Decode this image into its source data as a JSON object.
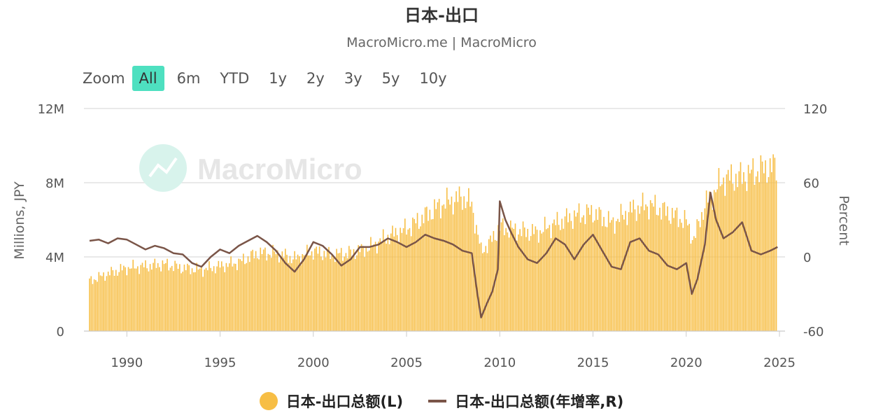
{
  "header": {
    "title": "日本-出口",
    "subtitle": "MacroMicro.me | MacroMicro"
  },
  "zoom": {
    "label": "Zoom",
    "buttons": [
      "All",
      "6m",
      "YTD",
      "1y",
      "2y",
      "3y",
      "5y",
      "10y"
    ],
    "active": "All"
  },
  "watermark": {
    "text": "MacroMicro"
  },
  "colors": {
    "bars": "#f7be45",
    "line": "#7a5548",
    "grid": "#e2e2e2",
    "active": "#4ee0c0"
  },
  "chart_data": {
    "type": "bar",
    "title": "日本-出口",
    "subtitle": "MacroMicro.me | MacroMicro",
    "x_range": [
      1988,
      2024.9
    ],
    "x_ticks": [
      "1990",
      "1995",
      "2000",
      "2005",
      "2010",
      "2015",
      "2020",
      "2025"
    ],
    "y_left": {
      "label": "Millions, JPY",
      "range": [
        0,
        12000000
      ],
      "ticks": [
        "0",
        "4M",
        "8M",
        "12M"
      ]
    },
    "y_right": {
      "label": "Percent",
      "range": [
        -60,
        120
      ],
      "ticks": [
        "-60",
        "0",
        "60",
        "120"
      ]
    },
    "grid": true,
    "legend_position": "bottom",
    "series": [
      {
        "name": "日本-出口总额(L)",
        "type": "bar",
        "axis": "left",
        "x": [
          1988,
          1989,
          1990,
          1991,
          1992,
          1993,
          1994,
          1995,
          1996,
          1997,
          1998,
          1999,
          2000,
          2001,
          2002,
          2003,
          2004,
          2005,
          2006,
          2007,
          2008,
          2008.5,
          2009,
          2009.5,
          2010,
          2011,
          2012,
          2013,
          2014,
          2015,
          2016,
          2017,
          2018,
          2019,
          2020,
          2020.4,
          2021,
          2022,
          2023,
          2024,
          2024.9
        ],
        "values": [
          2700000,
          3100000,
          3400000,
          3500000,
          3600000,
          3400000,
          3300000,
          3500000,
          3700000,
          4200000,
          4200000,
          3900000,
          4300000,
          4100000,
          4200000,
          4500000,
          5100000,
          5500000,
          6200000,
          6900000,
          7200000,
          6800000,
          4300000,
          4800000,
          5600000,
          5400000,
          5300000,
          5800000,
          6200000,
          6400000,
          5800000,
          6500000,
          6800000,
          6400000,
          5900000,
          4900000,
          6800000,
          8200000,
          8300000,
          8700000,
          8900000
        ]
      },
      {
        "name": "日本-出口总额(年增率,R)",
        "type": "line",
        "axis": "right",
        "x": [
          1988,
          1988.5,
          1989,
          1989.5,
          1990,
          1990.5,
          1991,
          1991.5,
          1992,
          1992.5,
          1993,
          1993.5,
          1994,
          1994.5,
          1995,
          1995.5,
          1996,
          1996.5,
          1997,
          1997.5,
          1998,
          1998.5,
          1999,
          1999.5,
          2000,
          2000.5,
          2001,
          2001.5,
          2002,
          2002.5,
          2003,
          2003.5,
          2004,
          2004.5,
          2005,
          2005.5,
          2006,
          2006.5,
          2007,
          2007.5,
          2008,
          2008.5,
          2008.8,
          2009,
          2009.3,
          2009.6,
          2009.9,
          2010,
          2010.3,
          2010.6,
          2011,
          2011.5,
          2012,
          2012.5,
          2013,
          2013.5,
          2014,
          2014.5,
          2015,
          2015.5,
          2016,
          2016.5,
          2017,
          2017.5,
          2018,
          2018.5,
          2019,
          2019.5,
          2020,
          2020.3,
          2020.6,
          2021,
          2021.3,
          2021.6,
          2022,
          2022.5,
          2023,
          2023.5,
          2024,
          2024.5,
          2024.9
        ],
        "values": [
          13,
          14,
          11,
          15,
          14,
          10,
          6,
          9,
          7,
          3,
          2,
          -5,
          -8,
          0,
          6,
          3,
          9,
          13,
          17,
          12,
          5,
          -5,
          -12,
          -2,
          12,
          9,
          2,
          -7,
          -2,
          8,
          8,
          10,
          15,
          12,
          8,
          12,
          18,
          15,
          13,
          10,
          5,
          3,
          -30,
          -49,
          -38,
          -28,
          -10,
          45,
          30,
          20,
          8,
          -2,
          -5,
          3,
          15,
          10,
          -2,
          10,
          18,
          5,
          -8,
          -10,
          12,
          15,
          5,
          2,
          -7,
          -10,
          -5,
          -30,
          -18,
          10,
          52,
          30,
          15,
          20,
          28,
          5,
          2,
          5,
          8
        ]
      }
    ]
  }
}
